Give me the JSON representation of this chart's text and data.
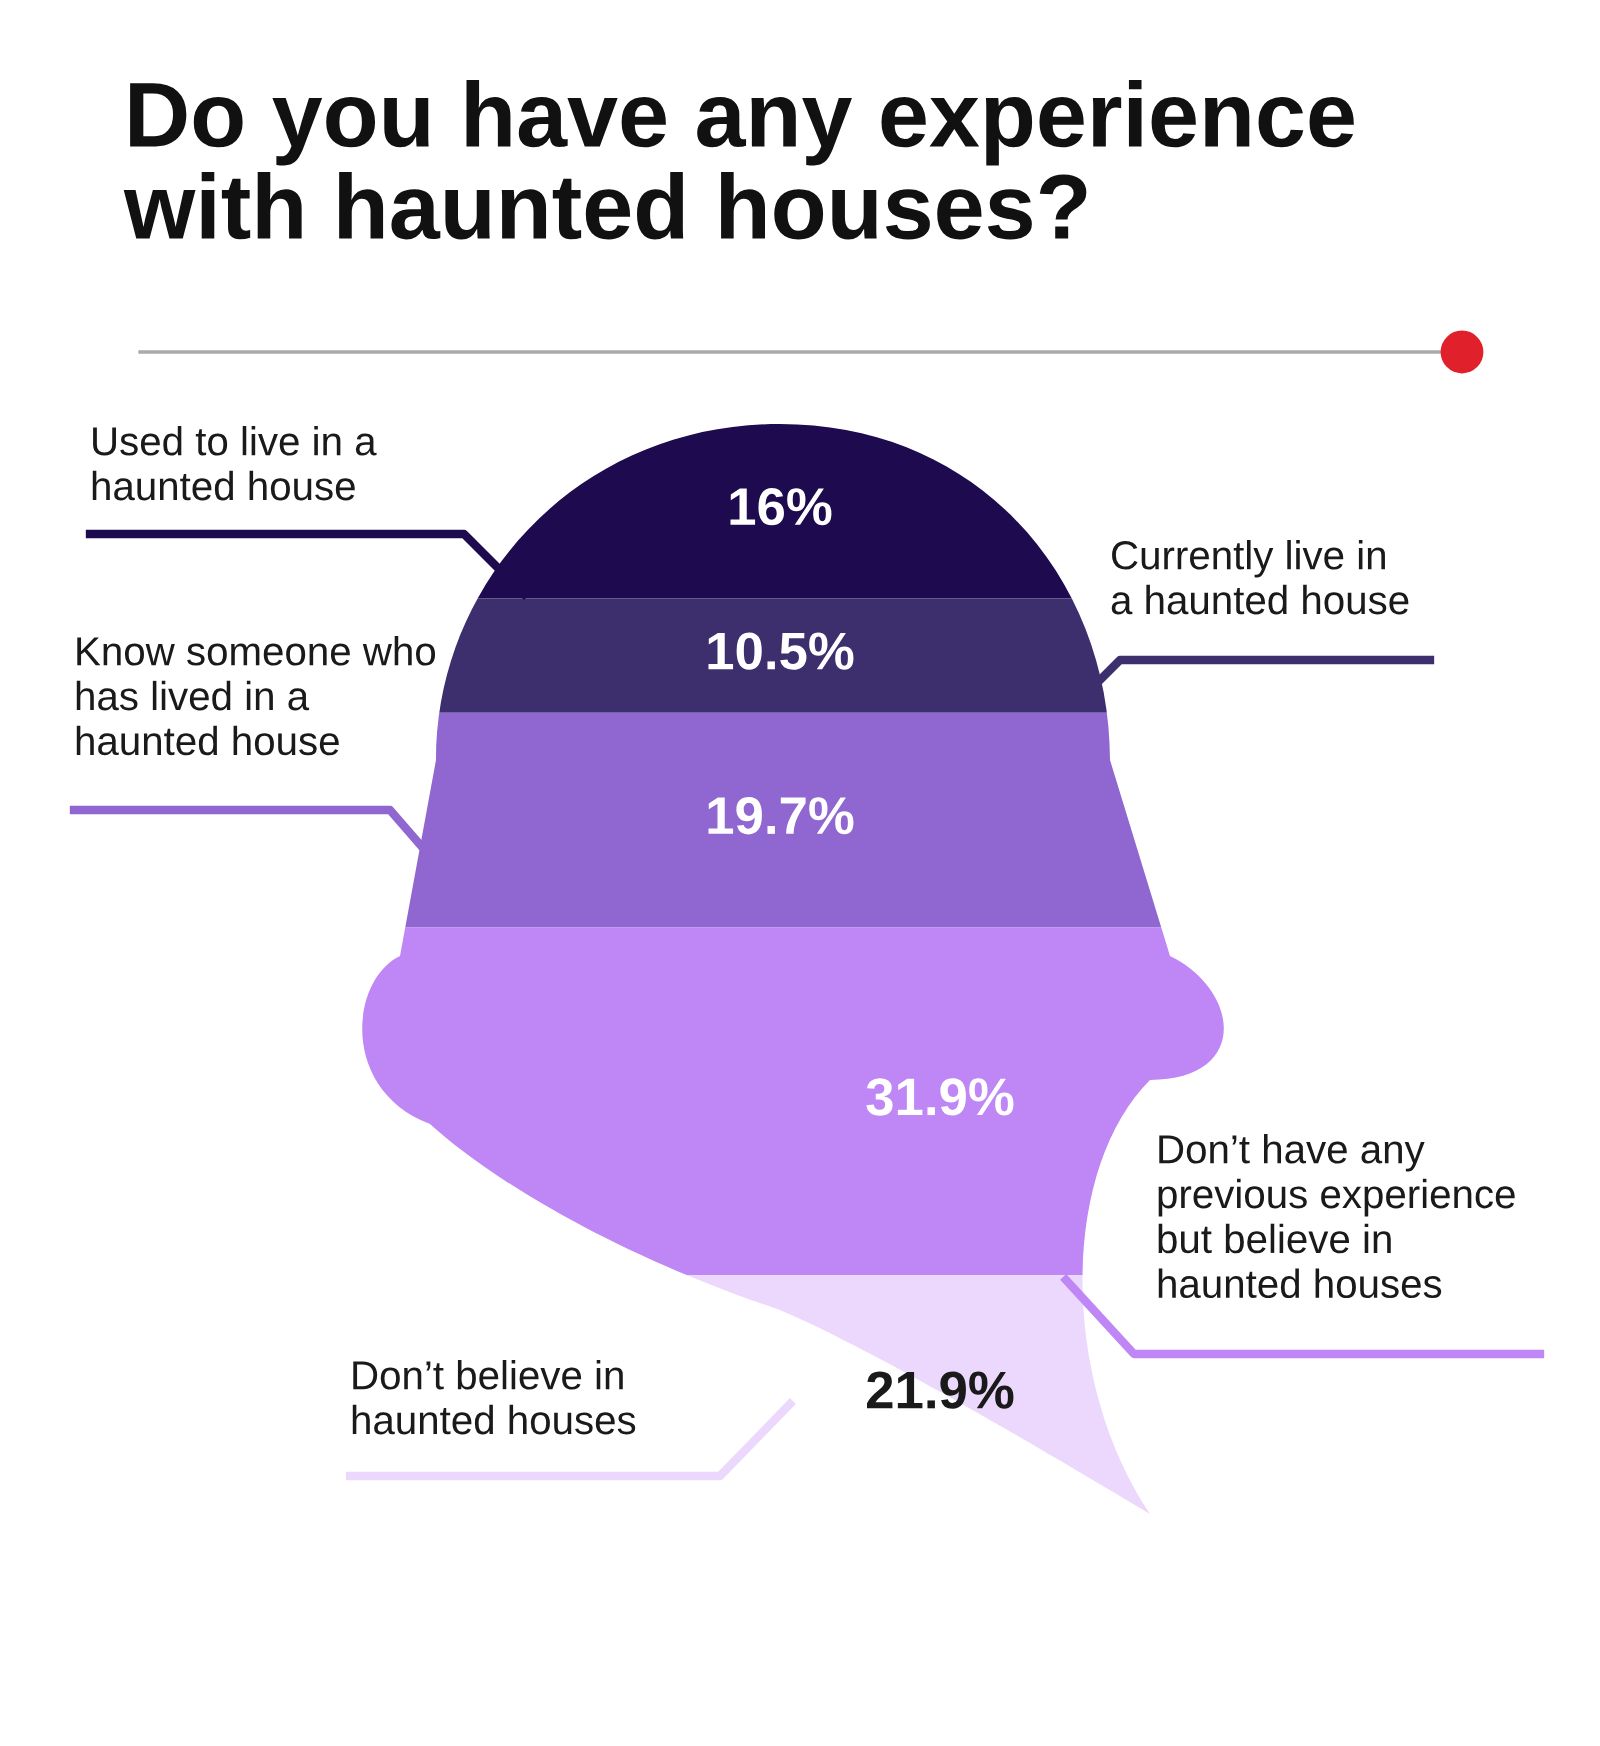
{
  "chart_data": {
    "type": "other",
    "title": "Do you have any experience with haunted houses?",
    "categories": [
      "Used to live in a haunted house",
      "Currently live in a haunted house",
      "Know someone who has lived in a haunted house",
      "Don’t have any previous experience but believe in haunted houses",
      "Don’t believe in haunted houses"
    ],
    "values": [
      16,
      10.5,
      19.7,
      31.9,
      21.9
    ],
    "value_labels": [
      "16%",
      "10.5%",
      "19.7%",
      "31.9%",
      "21.9%"
    ],
    "colors": [
      "#1e0b4f",
      "#3d2e6e",
      "#9066d0",
      "#bf86f5",
      "#ecd8fd"
    ],
    "data_labels": true
  }
}
